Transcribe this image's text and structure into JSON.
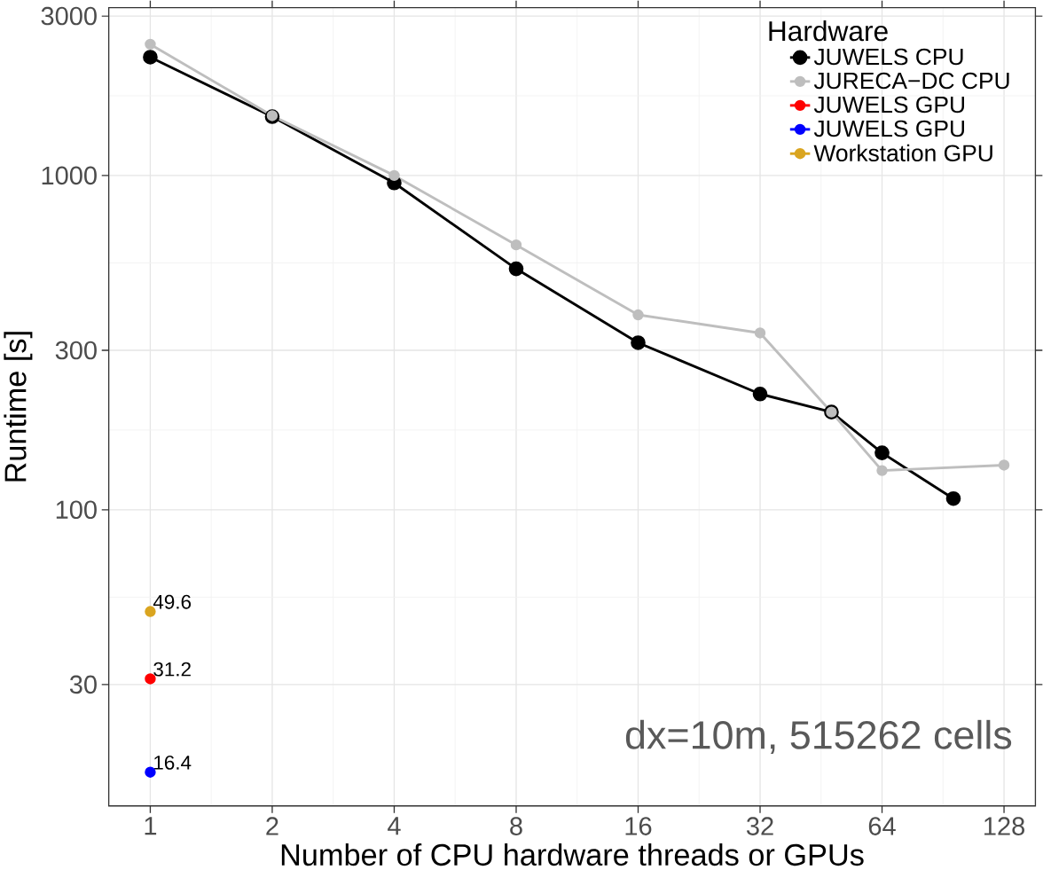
{
  "chart_data": {
    "type": "line",
    "xlabel": "Number of CPU hardware threads or GPUs",
    "ylabel": "Runtime [s]",
    "legend_title": "Hardware",
    "log": "xy",
    "grid": true,
    "legend": "top right",
    "marker": "circle",
    "line_style": "solid",
    "xlim": [
      0.79,
      153
    ],
    "ylim": [
      13.0,
      3180
    ],
    "xticks": [
      1,
      2,
      4,
      8,
      16,
      32,
      64,
      128
    ],
    "yticks": [
      30,
      100,
      300,
      1000,
      3000
    ],
    "annotations": [
      "dx=10m, 515262 cells"
    ],
    "series": [
      {
        "name": "JUWELS CPU",
        "color": "#000000",
        "x": [
          1,
          2,
          4,
          8,
          16,
          32,
          48,
          64,
          96
        ],
        "values": [
          2260,
          1500,
          950,
          526,
          316,
          222,
          196,
          148,
          108
        ]
      },
      {
        "name": "JURECA−DC CPU",
        "color": "#bebebe",
        "x": [
          1,
          2,
          4,
          8,
          16,
          32,
          48,
          64,
          128
        ],
        "values": [
          2470,
          1510,
          1000,
          620,
          383,
          338,
          196,
          131,
          136
        ]
      },
      {
        "name": "JUWELS GPU",
        "color": "#ff0000",
        "x": [
          1
        ],
        "values": [
          31.2
        ],
        "value_labels": [
          "31.2"
        ]
      },
      {
        "name": "JUWELS GPU",
        "color": "#0000ff",
        "x": [
          1
        ],
        "values": [
          16.4
        ],
        "value_labels": [
          "16.4"
        ]
      },
      {
        "name": "Workstation GPU",
        "color": "#daa520",
        "x": [
          1
        ],
        "values": [
          49.6
        ],
        "value_labels": [
          "49.6"
        ]
      }
    ]
  }
}
